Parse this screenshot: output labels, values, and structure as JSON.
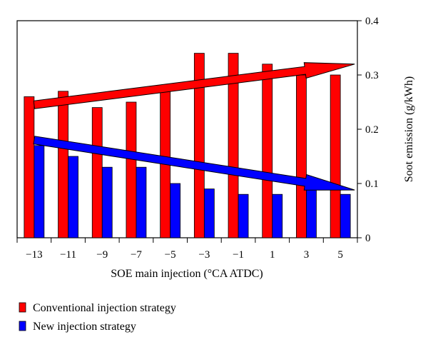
{
  "chart_data": {
    "type": "bar",
    "categories": [
      "−13",
      "−11",
      "−9",
      "−7",
      "−5",
      "−3",
      "−1",
      "1",
      "3",
      "5"
    ],
    "series": [
      {
        "name": "Conventional injection strategy",
        "color": "#ff0000",
        "values": [
          0.26,
          0.27,
          0.24,
          0.25,
          0.27,
          0.34,
          0.34,
          0.32,
          0.3,
          0.3
        ]
      },
      {
        "name": "New injection strategy",
        "color": "#0000ff",
        "values": [
          0.17,
          0.15,
          0.13,
          0.13,
          0.1,
          0.09,
          0.08,
          0.08,
          0.09,
          0.08
        ]
      }
    ],
    "xlabel": "SOE main injection (°CA ATDC)",
    "ylabel": "Soot emission (g/kWh)",
    "ylim": [
      0,
      0.4
    ],
    "yticks": [
      "0",
      "0.1",
      "0.2",
      "0.3",
      "0.4"
    ],
    "trend_arrows": [
      {
        "series": "Conventional injection strategy",
        "color": "#ff0000",
        "from": [
          -13,
          0.245
        ],
        "to": [
          5,
          0.32
        ]
      },
      {
        "series": "New injection strategy",
        "color": "#0000ff",
        "from": [
          -13,
          0.18
        ],
        "to": [
          5,
          0.088
        ]
      }
    ],
    "grid": false,
    "legend_position": "bottom-left"
  }
}
